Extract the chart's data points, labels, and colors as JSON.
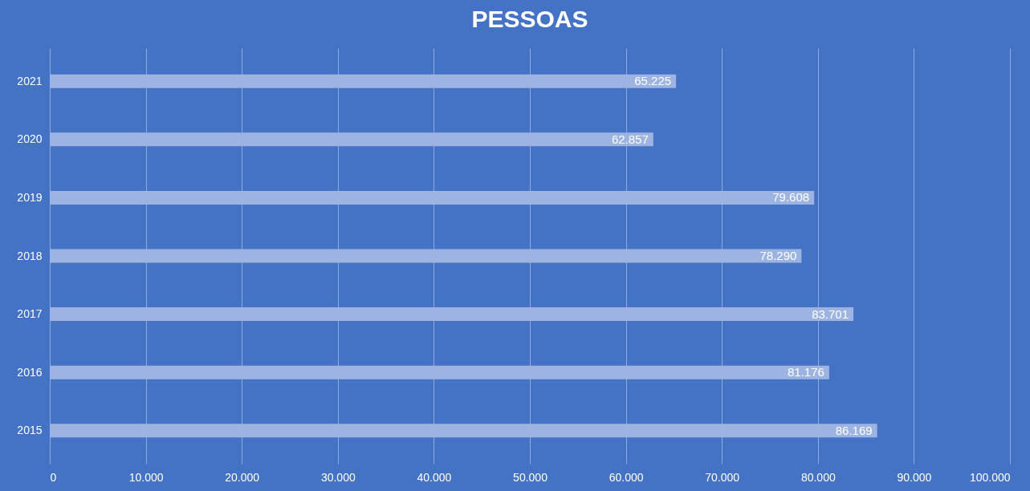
{
  "chart_data": {
    "type": "bar",
    "orientation": "horizontal",
    "title": "PESSOAS",
    "categories": [
      "2021",
      "2020",
      "2019",
      "2018",
      "2017",
      "2016",
      "2015"
    ],
    "values": [
      65225,
      62857,
      79608,
      78290,
      83701,
      81176,
      86169
    ],
    "value_labels": [
      "65.225",
      "62.857",
      "79.608",
      "78.290",
      "83.701",
      "81.176",
      "86.169"
    ],
    "color": "#9db4e2",
    "xlim": [
      0,
      100000
    ],
    "xticks": [
      0,
      {
        "value": 10000,
        "label": "10.000"
      },
      {
        "value": 20000,
        "label": "20.000"
      },
      {
        "value": 30000,
        "label": "30.000"
      },
      {
        "value": 40000,
        "label": "40.000"
      },
      {
        "value": 50000,
        "label": "50.000"
      },
      {
        "value": 60000,
        "label": "60.000"
      },
      {
        "value": 70000,
        "label": "70.000"
      },
      {
        "value": 80000,
        "label": "80.000"
      },
      {
        "value": 90000,
        "label": "90.000"
      },
      {
        "value": 100000,
        "label": "100.000"
      }
    ],
    "grid": "x"
  }
}
